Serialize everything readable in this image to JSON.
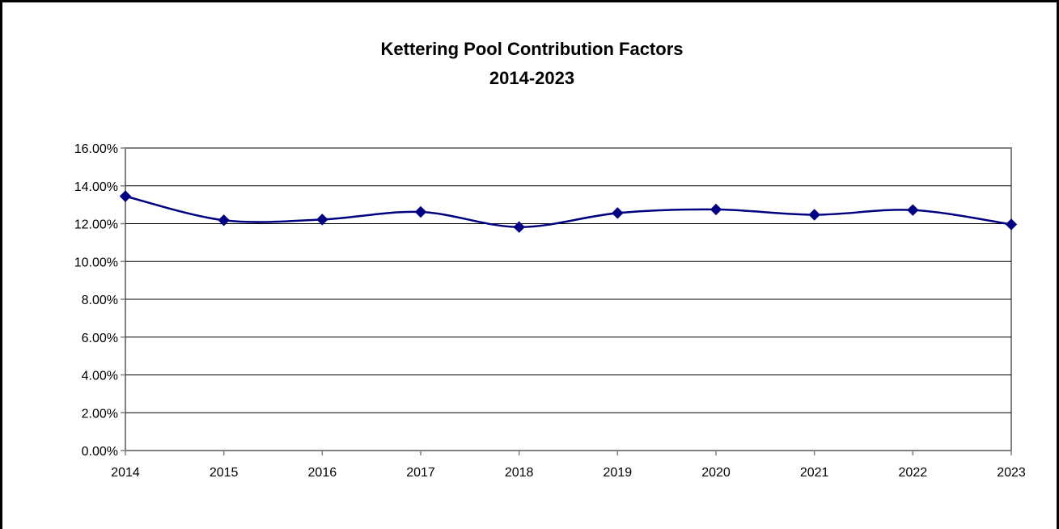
{
  "chart_data": {
    "type": "line",
    "title": "Kettering Pool Contribution Factors",
    "subtitle": "2014-2023",
    "xlabel": "",
    "ylabel": "",
    "categories": [
      "2014",
      "2015",
      "2016",
      "2017",
      "2018",
      "2019",
      "2020",
      "2021",
      "2022",
      "2023"
    ],
    "series": [
      {
        "values": [
          13.45,
          12.18,
          12.22,
          12.62,
          11.82,
          12.56,
          12.75,
          12.47,
          12.72,
          11.96
        ]
      }
    ],
    "y_ticks": [
      "0.00%",
      "2.00%",
      "4.00%",
      "6.00%",
      "8.00%",
      "10.00%",
      "12.00%",
      "14.00%",
      "16.00%"
    ],
    "ylim": [
      0,
      16
    ],
    "y_unit": "%",
    "grid": true,
    "smooth": true,
    "legend": "none",
    "colors": {
      "series": "#000080",
      "grid": "#000000",
      "axis": "#808080"
    }
  }
}
